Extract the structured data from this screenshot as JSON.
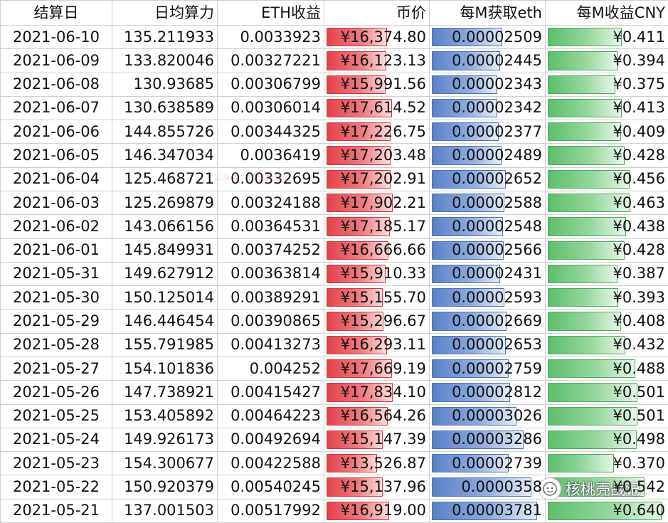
{
  "headers": [
    "结算日",
    "日均算力",
    "ETH收益",
    "币价",
    "每M获取eth",
    "每M收益CNY"
  ],
  "rows": [
    {
      "date": "2021-06-10",
      "hashrate": "135.211933",
      "eth": "0.0033923",
      "price": "¥16,374.80",
      "price_val": 16374.8,
      "per_m_eth": "0.00002509",
      "per_m_eth_val": 2.509e-05,
      "per_m_cny": "¥0.411",
      "per_m_cny_val": 0.411
    },
    {
      "date": "2021-06-09",
      "hashrate": "133.820046",
      "eth": "0.00327221",
      "price": "¥16,123.13",
      "price_val": 16123.13,
      "per_m_eth": "0.00002445",
      "per_m_eth_val": 2.445e-05,
      "per_m_cny": "¥0.394",
      "per_m_cny_val": 0.394
    },
    {
      "date": "2021-06-08",
      "hashrate": "130.93685",
      "eth": "0.00306799",
      "price": "¥15,991.56",
      "price_val": 15991.56,
      "per_m_eth": "0.00002343",
      "per_m_eth_val": 2.343e-05,
      "per_m_cny": "¥0.375",
      "per_m_cny_val": 0.375
    },
    {
      "date": "2021-06-07",
      "hashrate": "130.638589",
      "eth": "0.00306014",
      "price": "¥17,614.52",
      "price_val": 17614.52,
      "per_m_eth": "0.00002342",
      "per_m_eth_val": 2.342e-05,
      "per_m_cny": "¥0.413",
      "per_m_cny_val": 0.413
    },
    {
      "date": "2021-06-06",
      "hashrate": "144.855726",
      "eth": "0.00344325",
      "price": "¥17,226.75",
      "price_val": 17226.75,
      "per_m_eth": "0.00002377",
      "per_m_eth_val": 2.377e-05,
      "per_m_cny": "¥0.409",
      "per_m_cny_val": 0.409
    },
    {
      "date": "2021-06-05",
      "hashrate": "146.347034",
      "eth": "0.0036419",
      "price": "¥17,203.48",
      "price_val": 17203.48,
      "per_m_eth": "0.00002489",
      "per_m_eth_val": 2.489e-05,
      "per_m_cny": "¥0.428",
      "per_m_cny_val": 0.428
    },
    {
      "date": "2021-06-04",
      "hashrate": "125.468721",
      "eth": "0.00332695",
      "price": "¥17,202.91",
      "price_val": 17202.91,
      "per_m_eth": "0.00002652",
      "per_m_eth_val": 2.652e-05,
      "per_m_cny": "¥0.456",
      "per_m_cny_val": 0.456
    },
    {
      "date": "2021-06-03",
      "hashrate": "125.269879",
      "eth": "0.00324188",
      "price": "¥17,902.21",
      "price_val": 17902.21,
      "per_m_eth": "0.00002588",
      "per_m_eth_val": 2.588e-05,
      "per_m_cny": "¥0.463",
      "per_m_cny_val": 0.463
    },
    {
      "date": "2021-06-02",
      "hashrate": "143.066156",
      "eth": "0.00364531",
      "price": "¥17,185.17",
      "price_val": 17185.17,
      "per_m_eth": "0.00002548",
      "per_m_eth_val": 2.548e-05,
      "per_m_cny": "¥0.438",
      "per_m_cny_val": 0.438
    },
    {
      "date": "2021-06-01",
      "hashrate": "145.849931",
      "eth": "0.00374252",
      "price": "¥16,666.66",
      "price_val": 16666.66,
      "per_m_eth": "0.00002566",
      "per_m_eth_val": 2.566e-05,
      "per_m_cny": "¥0.428",
      "per_m_cny_val": 0.428
    },
    {
      "date": "2021-05-31",
      "hashrate": "149.627912",
      "eth": "0.00363814",
      "price": "¥15,910.33",
      "price_val": 15910.33,
      "per_m_eth": "0.00002431",
      "per_m_eth_val": 2.431e-05,
      "per_m_cny": "¥0.387",
      "per_m_cny_val": 0.387
    },
    {
      "date": "2021-05-30",
      "hashrate": "150.125014",
      "eth": "0.00389291",
      "price": "¥15,155.70",
      "price_val": 15155.7,
      "per_m_eth": "0.00002593",
      "per_m_eth_val": 2.593e-05,
      "per_m_cny": "¥0.393",
      "per_m_cny_val": 0.393
    },
    {
      "date": "2021-05-29",
      "hashrate": "146.446454",
      "eth": "0.00390865",
      "price": "¥15,296.67",
      "price_val": 15296.67,
      "per_m_eth": "0.00002669",
      "per_m_eth_val": 2.669e-05,
      "per_m_cny": "¥0.408",
      "per_m_cny_val": 0.408
    },
    {
      "date": "2021-05-28",
      "hashrate": "155.791985",
      "eth": "0.00413273",
      "price": "¥16,293.11",
      "price_val": 16293.11,
      "per_m_eth": "0.00002653",
      "per_m_eth_val": 2.653e-05,
      "per_m_cny": "¥0.432",
      "per_m_cny_val": 0.432
    },
    {
      "date": "2021-05-27",
      "hashrate": "154.101836",
      "eth": "0.004252",
      "price": "¥17,669.19",
      "price_val": 17669.19,
      "per_m_eth": "0.00002759",
      "per_m_eth_val": 2.759e-05,
      "per_m_cny": "¥0.488",
      "per_m_cny_val": 0.488
    },
    {
      "date": "2021-05-26",
      "hashrate": "147.738921",
      "eth": "0.00415427",
      "price": "¥17,834.10",
      "price_val": 17834.1,
      "per_m_eth": "0.00002812",
      "per_m_eth_val": 2.812e-05,
      "per_m_cny": "¥0.501",
      "per_m_cny_val": 0.501
    },
    {
      "date": "2021-05-25",
      "hashrate": "153.405892",
      "eth": "0.00464223",
      "price": "¥16,564.26",
      "price_val": 16564.26,
      "per_m_eth": "0.00003026",
      "per_m_eth_val": 3.026e-05,
      "per_m_cny": "¥0.501",
      "per_m_cny_val": 0.501
    },
    {
      "date": "2021-05-24",
      "hashrate": "149.926173",
      "eth": "0.00492694",
      "price": "¥15,147.39",
      "price_val": 15147.39,
      "per_m_eth": "0.00003286",
      "per_m_eth_val": 3.286e-05,
      "per_m_cny": "¥0.498",
      "per_m_cny_val": 0.498
    },
    {
      "date": "2021-05-23",
      "hashrate": "154.300677",
      "eth": "0.00422588",
      "price": "¥13,526.87",
      "price_val": 13526.87,
      "per_m_eth": "0.00002739",
      "per_m_eth_val": 2.739e-05,
      "per_m_cny": "¥0.370",
      "per_m_cny_val": 0.37
    },
    {
      "date": "2021-05-22",
      "hashrate": "150.920379",
      "eth": "0.00540245",
      "price": "¥15,137.96",
      "price_val": 15137.96,
      "per_m_eth": "0.0000358",
      "per_m_eth_val": 3.58e-05,
      "per_m_cny": "¥0.542",
      "per_m_cny_val": 0.542
    },
    {
      "date": "2021-05-21",
      "hashrate": "137.001503",
      "eth": "0.00517992",
      "price": "¥16,919.00",
      "price_val": 16919.0,
      "per_m_eth": "0.00003781",
      "per_m_eth_val": 3.781e-05,
      "per_m_cny": "¥0.640",
      "per_m_cny_val": 0.64
    }
  ],
  "bar_colors": {
    "price": "#e3434b",
    "per_m_eth": "#5a81c8",
    "per_m_cny": "#5cbf6a"
  },
  "watermark": {
    "text": "公众号：核桃壳战记",
    "color": "#e7968c"
  },
  "logo": {
    "text": "核桃壳战记",
    "icon": "wechat-official-account-icon"
  }
}
